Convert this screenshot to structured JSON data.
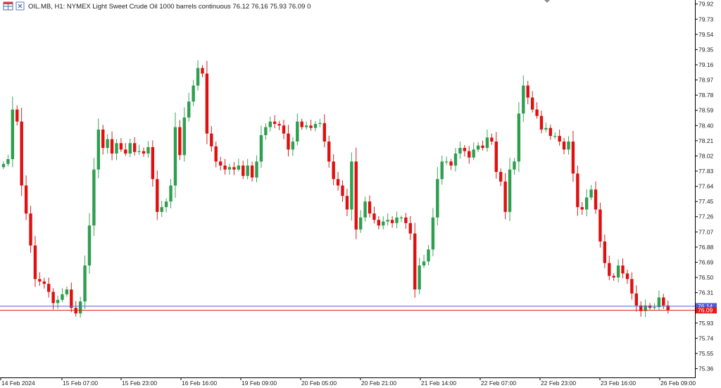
{
  "header": {
    "icon": "chart-table-icon",
    "symbol_line": "OIL.MB, H1:  NYMEX Light Sweet Crude Oil 1000 barrels continuous  76.12 76.16 75.93 76.09  0"
  },
  "chart_data": {
    "type": "candlestick",
    "title": "OIL.MB, H1:  NYMEX Light Sweet Crude Oil 1000 barrels continuous",
    "ohlc_label": "76.12 76.16 75.93 76.09  0",
    "ylim": [
      75.25,
      79.97
    ],
    "y_ticks": [
      "79.92",
      "79.73",
      "79.54",
      "79.35",
      "79.16",
      "78.97",
      "78.78",
      "78.59",
      "78.40",
      "78.21",
      "78.02",
      "77.83",
      "77.64",
      "77.45",
      "77.26",
      "77.07",
      "76.88",
      "76.69",
      "76.50",
      "76.31",
      "76.12",
      "75.93",
      "75.74",
      "75.55",
      "75.36"
    ],
    "x_ticks": [
      "14 Feb 2024",
      "15 Feb 07:00",
      "15 Feb 23:00",
      "16 Feb 16:00",
      "19 Feb 09:00",
      "20 Feb 05:00",
      "20 Feb 21:00",
      "21 Feb 14:00",
      "22 Feb 07:00",
      "22 Feb 23:00",
      "23 Feb 16:00",
      "26 Feb 09:00"
    ],
    "ask_price": "76.14",
    "bid_price": "76.09",
    "colors": {
      "bull": "#2e9e4f",
      "bear": "#e01010",
      "ask": "#4d5bd6",
      "bid": "#e31a1a",
      "grid": "#c8c8c8"
    },
    "closes": [
      77.92,
      77.98,
      78.6,
      78.45,
      77.65,
      77.3,
      76.9,
      76.48,
      76.45,
      76.42,
      76.32,
      76.18,
      76.22,
      76.29,
      76.35,
      76.12,
      76.05,
      76.2,
      76.65,
      77.15,
      77.85,
      78.35,
      78.12,
      78.23,
      78.05,
      78.18,
      78.1,
      78.05,
      78.18,
      78.07,
      78.08,
      78.05,
      78.13,
      77.73,
      77.32,
      77.38,
      77.45,
      77.65,
      78.38,
      78.03,
      78.5,
      78.7,
      78.9,
      79.12,
      79.05,
      78.3,
      78.14,
      77.95,
      77.9,
      77.85,
      77.88,
      77.85,
      77.9,
      77.77,
      77.9,
      77.75,
      77.95,
      78.28,
      78.38,
      78.45,
      78.42,
      78.4,
      78.3,
      78.1,
      78.2,
      78.45,
      78.38,
      78.4,
      78.37,
      78.42,
      78.43,
      78.2,
      77.95,
      77.73,
      77.65,
      77.52,
      77.35,
      77.95,
      77.1,
      77.25,
      77.45,
      77.3,
      77.22,
      77.15,
      77.2,
      77.22,
      77.18,
      77.25,
      77.25,
      77.18,
      77.05,
      76.35,
      76.65,
      76.7,
      76.85,
      77.25,
      77.73,
      77.95,
      77.95,
      77.9,
      78.05,
      78.12,
      78.08,
      78.0,
      78.1,
      78.15,
      78.12,
      78.25,
      78.2,
      77.82,
      77.7,
      77.32,
      77.85,
      77.95,
      78.55,
      78.9,
      78.75,
      78.6,
      78.52,
      78.35,
      78.37,
      78.27,
      78.27,
      78.2,
      78.1,
      78.2,
      77.8,
      77.38,
      77.35,
      77.5,
      77.6,
      77.35,
      76.95,
      76.68,
      76.52,
      76.5,
      76.65,
      76.55,
      76.48,
      76.3,
      76.15,
      76.08,
      76.15,
      76.12,
      76.13,
      76.25,
      76.15,
      76.09
    ]
  }
}
